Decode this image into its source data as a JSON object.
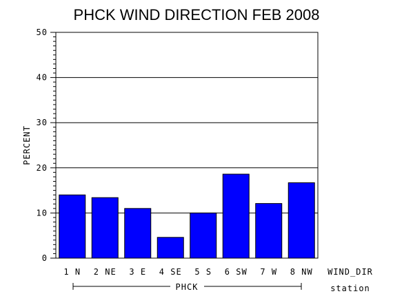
{
  "chart_data": {
    "type": "bar",
    "title": "PHCK WIND DIRECTION FEB 2008",
    "ylabel": "PERCENT",
    "xlabel": "WIND_DIR",
    "group_label": "PHCK",
    "group_axis_label": "station",
    "categories": [
      "1 N",
      "2 NE",
      "3 E",
      "4 SE",
      "5 S",
      "6 SW",
      "7 W",
      "8 NW"
    ],
    "values": [
      14.0,
      13.4,
      11.0,
      4.6,
      10.0,
      18.6,
      12.1,
      16.7
    ],
    "ylim": [
      0,
      50
    ],
    "yticks": [
      0,
      10,
      20,
      30,
      40,
      50
    ],
    "bar_color": "#0000ff",
    "grid": true
  }
}
